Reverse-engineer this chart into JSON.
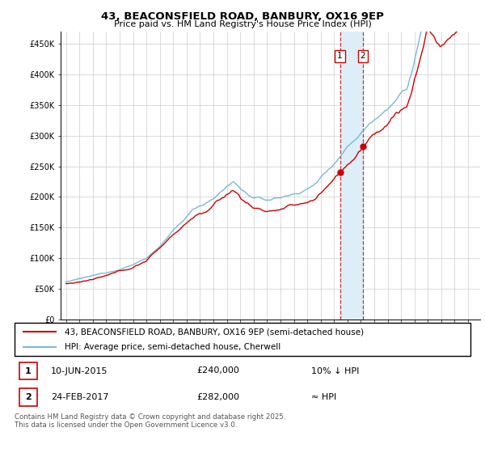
{
  "title": "43, BEACONSFIELD ROAD, BANBURY, OX16 9EP",
  "subtitle": "Price paid vs. HM Land Registry's House Price Index (HPI)",
  "legend_line1": "43, BEACONSFIELD ROAD, BANBURY, OX16 9EP (semi-detached house)",
  "legend_line2": "HPI: Average price, semi-detached house, Cherwell",
  "transaction1_date": "10-JUN-2015",
  "transaction1_price": "£240,000",
  "transaction1_hpi": "10% ↓ HPI",
  "transaction2_date": "24-FEB-2017",
  "transaction2_price": "£282,000",
  "transaction2_hpi": "≈ HPI",
  "footer": "Contains HM Land Registry data © Crown copyright and database right 2025.\nThis data is licensed under the Open Government Licence v3.0.",
  "hpi_color": "#7ab8d9",
  "price_color": "#cc0000",
  "shade_color": "#ddeef8",
  "marker_color": "#cc0000",
  "ylim": [
    0,
    470000
  ],
  "yticks": [
    0,
    50000,
    100000,
    150000,
    200000,
    250000,
    300000,
    350000,
    400000,
    450000
  ],
  "ytick_labels": [
    "£0",
    "£50K",
    "£100K",
    "£150K",
    "£200K",
    "£250K",
    "£300K",
    "£350K",
    "£400K",
    "£450K"
  ],
  "transaction1_year": 2015.44,
  "transaction2_year": 2017.15,
  "transaction1_price_val": 240000,
  "transaction2_price_val": 282000
}
